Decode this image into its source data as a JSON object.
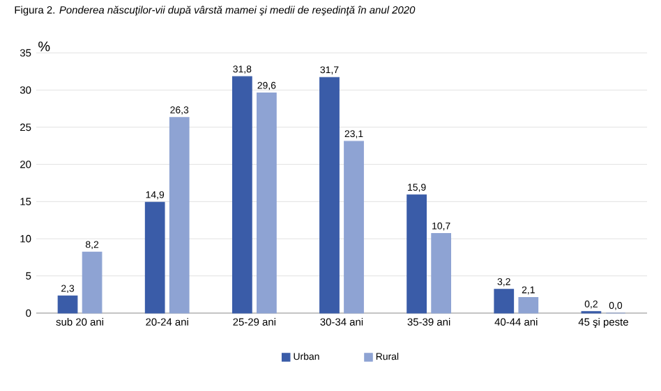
{
  "chart_data": {
    "type": "bar",
    "title": "Figura 2. *Ponderea născuţilor-vii după vârstă mamei şi medii de reşedinţă în anul 2020*",
    "ylabel": "%",
    "categories": [
      "sub 20 ani",
      "20-24 ani",
      "25-29 ani",
      "30-34 ani",
      "35-39 ani",
      "40-44 ani",
      "45 şi peste"
    ],
    "series": [
      {
        "name": "Urban",
        "color": "#3a5ca8",
        "values": [
          2.3,
          14.9,
          31.8,
          31.7,
          15.9,
          3.2,
          0.2
        ],
        "value_labels": [
          "2,3",
          "14,9",
          "31,8",
          "31,7",
          "15,9",
          "3,2",
          "0,2"
        ]
      },
      {
        "name": "Rural",
        "color": "#8ea3d3",
        "values": [
          8.2,
          26.3,
          29.6,
          23.1,
          10.7,
          2.1,
          0.0
        ],
        "value_labels": [
          "8,2",
          "26,3",
          "29,6",
          "23,1",
          "10,7",
          "2,1",
          "0,0"
        ]
      }
    ],
    "ylim": [
      0,
      35
    ],
    "yticks": [
      0,
      5,
      10,
      15,
      20,
      25,
      30,
      35
    ],
    "grid": "y",
    "legend": "bottom"
  }
}
